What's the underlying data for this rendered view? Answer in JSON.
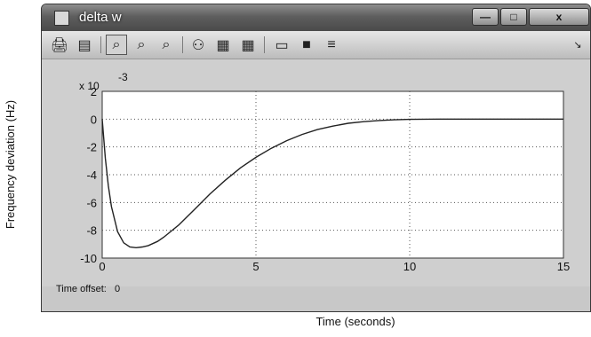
{
  "figure": {
    "ylabel": "Frequency deviation (Hz)",
    "xlabel": "Time (seconds)"
  },
  "window": {
    "title": "delta w",
    "buttons": {
      "minimize": "—",
      "maximize": "□",
      "close": "x"
    }
  },
  "toolbar": {
    "items": [
      {
        "name": "print-icon",
        "glyph": "🖨"
      },
      {
        "name": "parameters-icon",
        "glyph": "▤"
      },
      {
        "name": "zoom-icon",
        "glyph": "⌕"
      },
      {
        "name": "zoom-x-icon",
        "glyph": "⌕"
      },
      {
        "name": "zoom-y-icon",
        "glyph": "⌕"
      },
      {
        "name": "autoscale-icon",
        "glyph": "⚇"
      },
      {
        "name": "save-axes-icon",
        "glyph": "▦"
      },
      {
        "name": "restore-axes-icon",
        "glyph": "▦"
      },
      {
        "name": "floating-scope-icon",
        "glyph": "▭"
      },
      {
        "name": "lock-icon",
        "glyph": "■"
      },
      {
        "name": "signal-selection-icon",
        "glyph": "≡"
      }
    ],
    "menu_arrow": "↘"
  },
  "status": {
    "time_offset_label": "Time offset:",
    "time_offset_value": "0"
  },
  "chart_data": {
    "type": "line",
    "title": "",
    "xlabel": "Time (seconds)",
    "ylabel": "Frequency deviation (Hz)",
    "multiplier": "x 10",
    "exponent": "-3",
    "xlim": [
      0,
      15
    ],
    "ylim": [
      -10,
      2
    ],
    "x_ticks": [
      0,
      5,
      10,
      15
    ],
    "y_ticks": [
      2,
      0,
      -2,
      -4,
      -6,
      -8,
      -10
    ],
    "grid": true,
    "background": "#ffffff",
    "line_color": "#222222",
    "series": [
      {
        "x": [
          0,
          0.1,
          0.2,
          0.3,
          0.5,
          0.7,
          0.9,
          1.1,
          1.3,
          1.5,
          1.8,
          2.0,
          2.5,
          3.0,
          3.5,
          4.0,
          4.5,
          5.0,
          5.5,
          6.0,
          6.5,
          7.0,
          7.5,
          8.0,
          8.5,
          9.0,
          9.5,
          10.0,
          11.0,
          12.0,
          13.0,
          14.0,
          15.0
        ],
        "y": [
          0,
          -2.8,
          -4.8,
          -6.3,
          -8.1,
          -8.9,
          -9.2,
          -9.25,
          -9.2,
          -9.1,
          -8.8,
          -8.5,
          -7.6,
          -6.5,
          -5.4,
          -4.4,
          -3.5,
          -2.75,
          -2.1,
          -1.55,
          -1.1,
          -0.75,
          -0.5,
          -0.3,
          -0.18,
          -0.1,
          -0.05,
          -0.02,
          0,
          0,
          0,
          0,
          0
        ]
      }
    ]
  }
}
